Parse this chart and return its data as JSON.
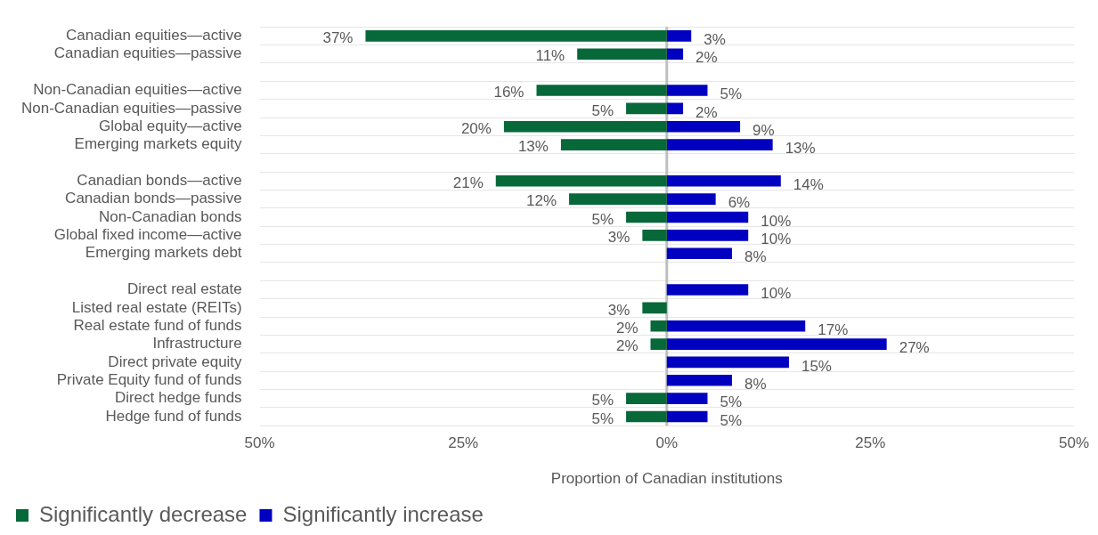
{
  "chart_data": {
    "type": "bar",
    "orientation": "horizontal",
    "categories": [
      "Canadian equities—active",
      "Canadian equities—passive",
      null,
      "Non-Canadian equities—active",
      "Non-Canadian equities—passive",
      "Global equity—active",
      "Emerging markets equity",
      null,
      "Canadian bonds—active",
      "Canadian bonds—passive",
      "Non-Canadian bonds",
      "Global fixed income—active",
      "Emerging markets debt",
      null,
      "Direct real estate",
      "Listed real estate (REITs)",
      "Real estate fund of funds",
      "Infrastructure",
      "Direct private equity",
      "Private Equity fund of funds",
      "Direct hedge funds",
      "Hedge fund of funds"
    ],
    "series": [
      {
        "name": "Significantly decrease",
        "color": "#07683a",
        "base": [
          -37,
          -11,
          null,
          -16,
          -5,
          -20,
          -13,
          null,
          -21,
          -12,
          -5,
          -3,
          null,
          null,
          null,
          -3,
          -2,
          -2,
          null,
          null,
          -5,
          -5
        ],
        "values": [
          37,
          11,
          null,
          16,
          5,
          20,
          13,
          null,
          21,
          12,
          5,
          3,
          null,
          null,
          null,
          3,
          2,
          2,
          null,
          null,
          5,
          5
        ],
        "value_labels": [
          "37%",
          "11%",
          null,
          "16%",
          "5%",
          "20%",
          "13%",
          null,
          "21%",
          "12%",
          "5%",
          "3%",
          null,
          null,
          null,
          "3%",
          "2%",
          "2%",
          null,
          null,
          "5%",
          "5%"
        ]
      },
      {
        "name": "Significantly increase",
        "color": "#0000c0",
        "values": [
          3,
          2,
          null,
          5,
          2,
          9,
          13,
          null,
          14,
          6,
          10,
          10,
          8,
          null,
          10,
          null,
          17,
          27,
          15,
          8,
          5,
          5
        ],
        "value_labels": [
          "3%",
          "2%",
          null,
          "5%",
          "2%",
          "9%",
          "13%",
          null,
          "14%",
          "6%",
          "10%",
          "10%",
          "8%",
          null,
          "10%",
          null,
          "17%",
          "27%",
          "15%",
          "8%",
          "5%",
          "5%"
        ]
      }
    ],
    "xlim": [
      -50,
      50
    ],
    "xticks": [
      {
        "value": -50,
        "label": "50%"
      },
      {
        "value": -25,
        "label": "25%"
      },
      {
        "value": 0,
        "label": "0%"
      },
      {
        "value": 25,
        "label": "25%"
      },
      {
        "value": 50,
        "label": "50%"
      }
    ],
    "xlabel": "Proportion of Canadian institutions",
    "ref_lines": [
      {
        "axis": "x",
        "value": 0,
        "color": "#bfbfbf"
      }
    ],
    "grid": "y",
    "legend": "bottom left"
  }
}
